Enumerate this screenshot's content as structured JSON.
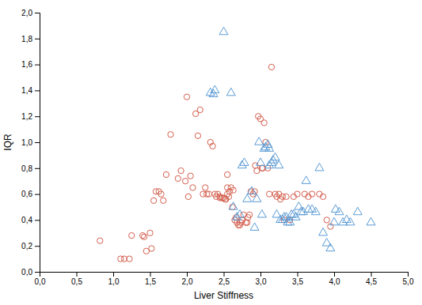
{
  "chart_data": {
    "type": "scatter",
    "xlabel": "Liver Stiffness",
    "ylabel": "IQR",
    "xlim": [
      0,
      5.0
    ],
    "ylim": [
      0,
      2.0
    ],
    "xticks": [
      {
        "value": 0.0,
        "label": "0,0"
      },
      {
        "value": 0.5,
        "label": "0,5"
      },
      {
        "value": 1.0,
        "label": "1,0"
      },
      {
        "value": 1.5,
        "label": "1,5"
      },
      {
        "value": 2.0,
        "label": "2,0"
      },
      {
        "value": 2.5,
        "label": "2,5"
      },
      {
        "value": 3.0,
        "label": "3,0"
      },
      {
        "value": 3.5,
        "label": "3,5"
      },
      {
        "value": 4.0,
        "label": "4,0"
      },
      {
        "value": 4.5,
        "label": "4,5"
      },
      {
        "value": 5.0,
        "label": "5,0"
      }
    ],
    "yticks": [
      {
        "value": 0.0,
        "label": "0,0"
      },
      {
        "value": 0.2,
        "label": "0,2"
      },
      {
        "value": 0.4,
        "label": "0,4"
      },
      {
        "value": 0.6,
        "label": "0,6"
      },
      {
        "value": 0.8,
        "label": "0,8"
      },
      {
        "value": 1.0,
        "label": "1,0"
      },
      {
        "value": 1.2,
        "label": "1,2"
      },
      {
        "value": 1.4,
        "label": "1,4"
      },
      {
        "value": 1.6,
        "label": "1,6"
      },
      {
        "value": 1.8,
        "label": "1,8"
      },
      {
        "value": 2.0,
        "label": "2,0"
      }
    ],
    "grid": false,
    "series": [
      {
        "color": "#d45f4e",
        "marker": "circle",
        "x": [
          0.82,
          1.1,
          1.15,
          1.4,
          1.42,
          1.45,
          1.5,
          1.52,
          1.55,
          1.58,
          1.62,
          1.65,
          1.68,
          1.72,
          1.78,
          1.88,
          1.92,
          1.98,
          2.02,
          2.05,
          2.08,
          2.12,
          2.15,
          2.18,
          2.22,
          2.25,
          2.27,
          2.3,
          2.32,
          2.35,
          2.38,
          2.4,
          2.42,
          2.45,
          2.45,
          2.48,
          2.5,
          2.52,
          2.53,
          2.55,
          2.55,
          2.57,
          2.58,
          2.6,
          2.62,
          2.63,
          2.65,
          2.67,
          2.68,
          2.7,
          2.72,
          2.73,
          2.75,
          2.77,
          2.8,
          2.82,
          2.83,
          2.85,
          2.87,
          2.9,
          2.92,
          2.93,
          2.95,
          2.97,
          3.0,
          3.02,
          3.03,
          3.05,
          3.07,
          3.1,
          3.12,
          3.15,
          3.2,
          3.22,
          3.25,
          3.27,
          3.3,
          3.32,
          3.35,
          3.4,
          3.45,
          3.5,
          3.6,
          3.65,
          3.7,
          3.8,
          3.85,
          3.9,
          3.95,
          1.22,
          1.25,
          2.0,
          2.55
        ],
        "values": [
          0.24,
          0.1,
          0.1,
          0.28,
          0.27,
          0.16,
          0.3,
          0.18,
          0.55,
          0.62,
          0.62,
          0.6,
          0.55,
          0.75,
          1.06,
          0.72,
          0.78,
          0.7,
          0.58,
          0.74,
          0.65,
          1.22,
          1.05,
          1.25,
          0.6,
          0.65,
          0.6,
          0.6,
          1.0,
          0.97,
          0.6,
          0.58,
          0.6,
          0.57,
          0.58,
          0.57,
          0.57,
          0.56,
          0.56,
          0.65,
          0.6,
          0.58,
          0.62,
          0.65,
          0.5,
          0.63,
          0.4,
          0.42,
          0.38,
          0.36,
          0.36,
          0.38,
          0.4,
          0.44,
          0.38,
          0.38,
          0.42,
          0.44,
          0.62,
          0.6,
          0.62,
          0.82,
          0.78,
          1.2,
          1.18,
          0.8,
          0.8,
          1.15,
          1.0,
          0.8,
          0.6,
          1.58,
          0.6,
          0.58,
          0.6,
          0.56,
          0.58,
          0.4,
          0.58,
          0.4,
          0.58,
          0.6,
          0.6,
          0.58,
          0.6,
          0.6,
          0.58,
          0.4,
          0.35,
          0.1,
          0.28,
          1.35,
          0.75
        ]
      },
      {
        "color": "#5b9bd5",
        "marker": "triangle",
        "x": [
          2.32,
          2.36,
          2.38,
          2.5,
          2.6,
          2.63,
          2.68,
          2.72,
          2.75,
          2.78,
          2.82,
          2.88,
          2.92,
          2.95,
          2.98,
          3.0,
          3.02,
          3.05,
          3.07,
          3.1,
          3.12,
          3.12,
          3.15,
          3.17,
          3.2,
          3.22,
          3.25,
          3.27,
          3.3,
          3.32,
          3.35,
          3.37,
          3.4,
          3.42,
          3.45,
          3.48,
          3.52,
          3.55,
          3.58,
          3.62,
          3.65,
          3.7,
          3.75,
          3.8,
          3.85,
          3.9,
          3.95,
          4.0,
          4.02,
          4.07,
          4.12,
          4.17,
          4.22,
          4.32,
          4.5
        ],
        "values": [
          1.38,
          1.37,
          1.4,
          1.85,
          1.38,
          0.5,
          0.42,
          0.44,
          0.82,
          0.84,
          0.56,
          0.62,
          0.34,
          0.56,
          1.0,
          0.84,
          0.44,
          0.95,
          0.96,
          0.98,
          0.95,
          0.82,
          0.84,
          0.86,
          0.88,
          0.44,
          0.82,
          0.4,
          0.4,
          0.42,
          0.42,
          0.38,
          0.38,
          0.44,
          0.44,
          0.42,
          0.5,
          0.46,
          0.46,
          0.7,
          0.48,
          0.48,
          0.46,
          0.8,
          0.3,
          0.22,
          0.18,
          0.38,
          0.48,
          0.46,
          0.38,
          0.4,
          0.38,
          0.46,
          0.38
        ]
      }
    ]
  }
}
